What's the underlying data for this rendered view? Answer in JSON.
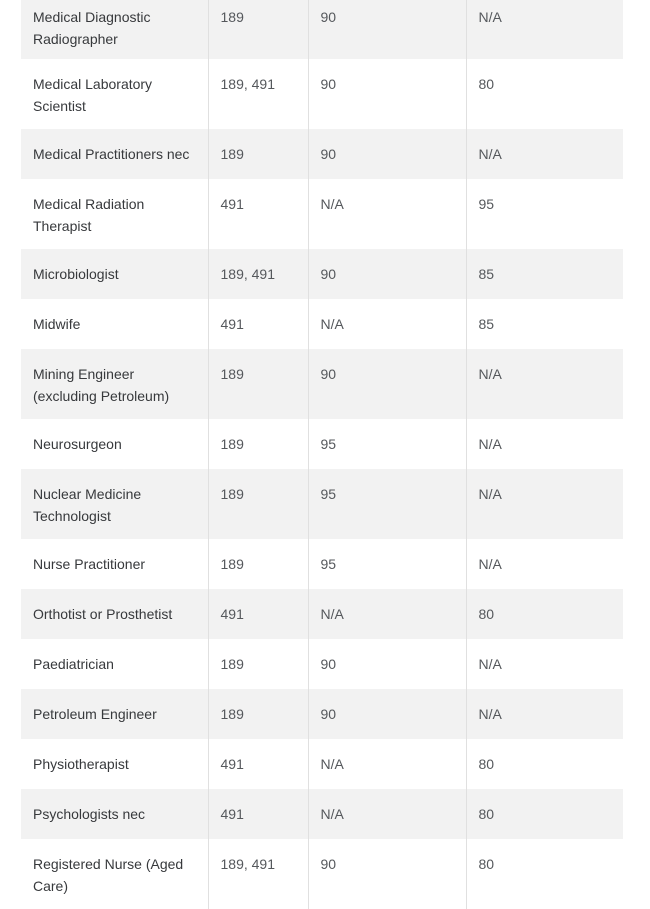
{
  "theme": {
    "row_shade_color": "#f2f2f2",
    "divider_color": "#e0e0e0",
    "occupation_text_color": "#37393c",
    "value_text_color": "#55585c"
  },
  "table": {
    "rows": [
      {
        "cells": [
          "Medical Diagnostic Radiographer",
          "189",
          "90",
          "N/A"
        ]
      },
      {
        "cells": [
          "Medical Laboratory Scientist",
          "189, 491",
          "90",
          "80"
        ]
      },
      {
        "cells": [
          "Medical Practitioners nec",
          "189",
          "90",
          "N/A"
        ]
      },
      {
        "cells": [
          "Medical Radiation Therapist",
          "491",
          "N/A",
          "95"
        ]
      },
      {
        "cells": [
          "Microbiologist",
          "189, 491",
          "90",
          "85"
        ]
      },
      {
        "cells": [
          "Midwife",
          "491",
          "N/A",
          "85"
        ]
      },
      {
        "cells": [
          "Mining Engineer (excluding Petroleum)",
          "189",
          "90",
          "N/A"
        ]
      },
      {
        "cells": [
          "Neurosurgeon",
          "189",
          "95",
          "N/A"
        ]
      },
      {
        "cells": [
          "Nuclear Medicine Technologist",
          "189",
          "95",
          "N/A"
        ]
      },
      {
        "cells": [
          "Nurse Practitioner",
          "189",
          "95",
          "N/A"
        ]
      },
      {
        "cells": [
          "Orthotist or Prosthetist",
          "491",
          "N/A",
          "80"
        ]
      },
      {
        "cells": [
          "Paediatrician",
          "189",
          "90",
          "N/A"
        ]
      },
      {
        "cells": [
          "Petroleum Engineer",
          "189",
          "90",
          "N/A"
        ]
      },
      {
        "cells": [
          "Physiotherapist",
          "491",
          "N/A",
          "80"
        ]
      },
      {
        "cells": [
          "Psychologists nec",
          "491",
          "N/A",
          "80"
        ]
      },
      {
        "cells": [
          "Registered Nurse (Aged Care)",
          "189, 491",
          "90",
          "80"
        ]
      }
    ]
  }
}
